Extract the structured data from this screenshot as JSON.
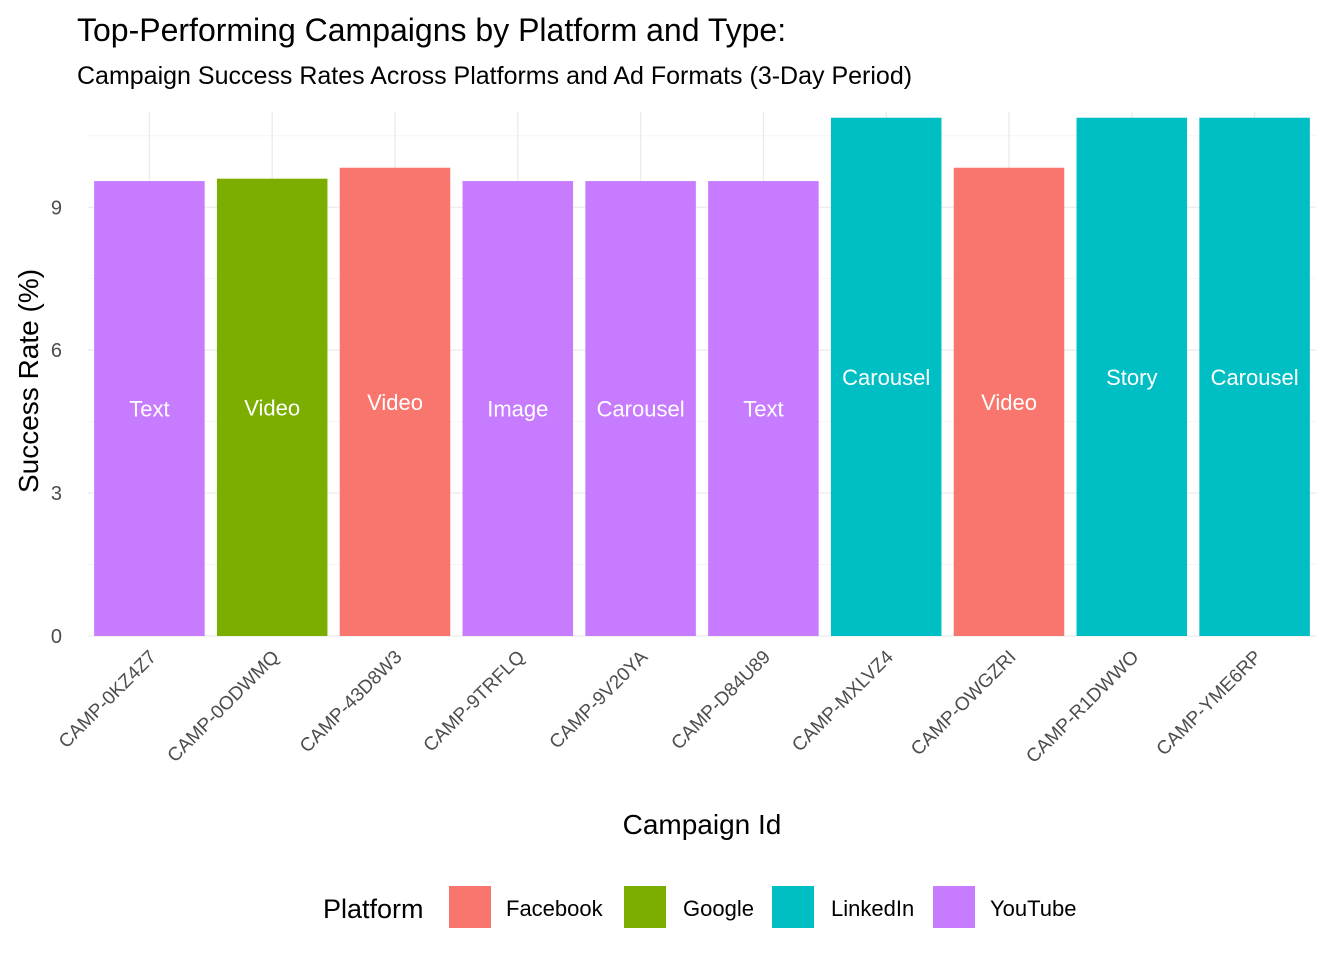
{
  "chart_data": {
    "type": "bar",
    "title": "Top-Performing Campaigns by Platform and Type:",
    "subtitle": "Campaign Success Rates Across Platforms and Ad Formats (3-Day Period)",
    "xlabel": "Campaign Id",
    "ylabel": "Success Rate (%)",
    "ylim": [
      0,
      11
    ],
    "yticks": [
      0,
      3,
      6,
      9
    ],
    "grid": true,
    "legend": {
      "title": "Platform",
      "position": "bottom",
      "entries": [
        {
          "name": "Facebook",
          "color": "#F8766D"
        },
        {
          "name": "Google",
          "color": "#7CAE00"
        },
        {
          "name": "LinkedIn",
          "color": "#00BFC4"
        },
        {
          "name": "YouTube",
          "color": "#C77CFF"
        }
      ]
    },
    "categories": [
      "CAMP-0KZ4Z7",
      "CAMP-0ODWMQ",
      "CAMP-43D8W3",
      "CAMP-9TRFLQ",
      "CAMP-9V20YA",
      "CAMP-D84U89",
      "CAMP-MXLVZ4",
      "CAMP-OWGZRI",
      "CAMP-R1DWWO",
      "CAMP-YME6RP"
    ],
    "values": [
      9.55,
      9.6,
      9.83,
      9.55,
      9.55,
      9.55,
      10.88,
      9.83,
      10.88,
      10.88
    ],
    "platforms": [
      "YouTube",
      "Google",
      "Facebook",
      "YouTube",
      "YouTube",
      "YouTube",
      "LinkedIn",
      "Facebook",
      "LinkedIn",
      "LinkedIn"
    ],
    "bar_labels": [
      "Text",
      "Video",
      "Video",
      "Image",
      "Carousel",
      "Text",
      "Carousel",
      "Video",
      "Story",
      "Carousel"
    ]
  }
}
